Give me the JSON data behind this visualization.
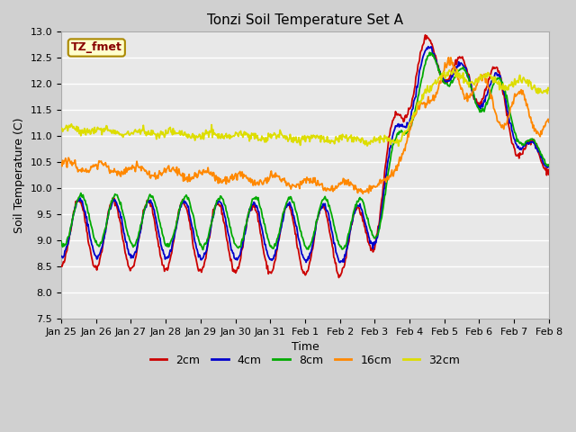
{
  "title": "Tonzi Soil Temperature Set A",
  "xlabel": "Time",
  "ylabel": "Soil Temperature (C)",
  "ylim": [
    7.5,
    13.0
  ],
  "yticks": [
    7.5,
    8.0,
    8.5,
    9.0,
    9.5,
    10.0,
    10.5,
    11.0,
    11.5,
    12.0,
    12.5,
    13.0
  ],
  "xtick_labels": [
    "Jan 25",
    "Jan 26",
    "Jan 27",
    "Jan 28",
    "Jan 29",
    "Jan 30",
    "Jan 31",
    "Feb 1",
    "Feb 2",
    "Feb 3",
    "Feb 4",
    "Feb 5",
    "Feb 6",
    "Feb 7",
    "Feb 8"
  ],
  "legend_labels": [
    "2cm",
    "4cm",
    "8cm",
    "16cm",
    "32cm"
  ],
  "legend_colors": [
    "#cc0000",
    "#0000cc",
    "#00aa00",
    "#ff8800",
    "#dddd00"
  ],
  "annotation_text": "TZ_fmet",
  "annotation_color": "#880000",
  "annotation_bg": "#ffffcc",
  "annotation_border": "#aa8800",
  "fig_bg_color": "#d0d0d0",
  "plot_bg_color": "#e8e8e8",
  "grid_color": "#ffffff",
  "line_width": 1.3,
  "title_fontsize": 11,
  "label_fontsize": 9,
  "tick_fontsize": 8
}
